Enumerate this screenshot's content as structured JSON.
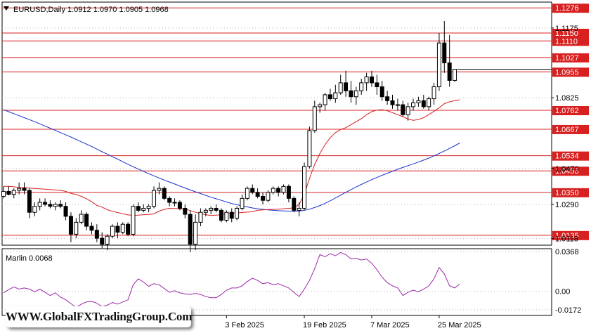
{
  "chart_data": [
    {
      "type": "candlestick",
      "symbol_header": "EURUSD,Daily  1.0912 1.0970 1.0905 1.0968",
      "ylim": [
        1.0085,
        1.1305
      ],
      "y_tick_labels": [
        "1.1175",
        "1.0825",
        "1.0470",
        "1.0290",
        "1.0118"
      ],
      "x_tick_labels": [
        "3 Feb 2025",
        "19 Feb 2025",
        "7 Mar 2025",
        "25 Mar 2025"
      ],
      "horizontal_levels": [
        {
          "value": 1.1276,
          "label": "1.1276"
        },
        {
          "value": 1.115,
          "label": "1.1150"
        },
        {
          "value": 1.111,
          "label": "1.1110"
        },
        {
          "value": 1.1027,
          "label": "1.1027"
        },
        {
          "value": 1.0955,
          "label": "1.0955"
        },
        {
          "value": 1.0762,
          "label": "1.0762"
        },
        {
          "value": 1.0667,
          "label": "1.0667"
        },
        {
          "value": 1.0534,
          "label": "1.0534"
        },
        {
          "value": 1.0458,
          "label": "1.0458"
        },
        {
          "value": 1.035,
          "label": "1.0350"
        },
        {
          "value": 1.0135,
          "label": "1.0135"
        }
      ],
      "current_price": 1.0968,
      "candles": [
        [
          1.033,
          1.038,
          1.032,
          1.0355
        ],
        [
          1.0355,
          1.038,
          1.0335,
          1.034
        ],
        [
          1.034,
          1.037,
          1.032,
          1.036
        ],
        [
          1.036,
          1.04,
          1.034,
          1.037
        ],
        [
          1.037,
          1.04,
          1.034,
          1.036
        ],
        [
          1.036,
          1.037,
          1.022,
          1.025
        ],
        [
          1.025,
          1.03,
          1.023,
          1.028
        ],
        [
          1.028,
          1.032,
          1.026,
          1.03
        ],
        [
          1.03,
          1.032,
          1.028,
          1.029
        ],
        [
          1.029,
          1.031,
          1.027,
          1.028
        ],
        [
          1.028,
          1.03,
          1.026,
          1.029
        ],
        [
          1.029,
          1.031,
          1.027,
          1.028
        ],
        [
          1.028,
          1.03,
          1.021,
          1.023
        ],
        [
          1.023,
          1.025,
          1.01,
          1.014
        ],
        [
          1.014,
          1.022,
          1.012,
          1.02
        ],
        [
          1.02,
          1.026,
          1.019,
          1.024
        ],
        [
          1.024,
          1.025,
          1.016,
          1.018
        ],
        [
          1.018,
          1.02,
          1.014,
          1.016
        ],
        [
          1.016,
          1.019,
          1.01,
          1.012
        ],
        [
          1.012,
          1.015,
          1.007,
          1.009
        ],
        [
          1.009,
          1.014,
          1.006,
          1.013
        ],
        [
          1.013,
          1.019,
          1.012,
          1.018
        ],
        [
          1.018,
          1.02,
          1.012,
          1.015
        ],
        [
          1.015,
          1.02,
          1.014,
          1.019
        ],
        [
          1.019,
          1.02,
          1.013,
          1.014
        ],
        [
          1.014,
          1.029,
          1.013,
          1.028
        ],
        [
          1.028,
          1.03,
          1.025,
          1.026
        ],
        [
          1.026,
          1.029,
          1.025,
          1.027
        ],
        [
          1.027,
          1.029,
          1.025,
          1.028
        ],
        [
          1.028,
          1.038,
          1.027,
          1.036
        ],
        [
          1.036,
          1.04,
          1.034,
          1.037
        ],
        [
          1.037,
          1.038,
          1.031,
          1.032
        ],
        [
          1.032,
          1.033,
          1.028,
          1.03
        ],
        [
          1.03,
          1.032,
          1.028,
          1.03
        ],
        [
          1.03,
          1.031,
          1.026,
          1.027
        ],
        [
          1.027,
          1.029,
          1.022,
          1.024
        ],
        [
          1.024,
          1.026,
          1.005,
          1.009
        ],
        [
          1.009,
          1.024,
          1.006,
          1.02
        ],
        [
          1.02,
          1.027,
          1.018,
          1.025
        ],
        [
          1.025,
          1.027,
          1.023,
          1.026
        ],
        [
          1.026,
          1.028,
          1.024,
          1.027
        ],
        [
          1.027,
          1.029,
          1.025,
          1.026
        ],
        [
          1.026,
          1.027,
          1.02,
          1.021
        ],
        [
          1.021,
          1.026,
          1.02,
          1.025
        ],
        [
          1.025,
          1.027,
          1.02,
          1.022
        ],
        [
          1.022,
          1.028,
          1.021,
          1.027
        ],
        [
          1.027,
          1.034,
          1.026,
          1.032
        ],
        [
          1.032,
          1.038,
          1.031,
          1.037
        ],
        [
          1.037,
          1.039,
          1.034,
          1.035
        ],
        [
          1.035,
          1.037,
          1.032,
          1.033
        ],
        [
          1.033,
          1.035,
          1.029,
          1.031
        ],
        [
          1.031,
          1.036,
          1.03,
          1.035
        ],
        [
          1.035,
          1.038,
          1.034,
          1.037
        ],
        [
          1.037,
          1.038,
          1.033,
          1.035
        ],
        [
          1.035,
          1.039,
          1.034,
          1.038
        ],
        [
          1.038,
          1.039,
          1.03,
          1.032
        ],
        [
          1.032,
          1.033,
          1.025,
          1.026
        ],
        [
          1.026,
          1.03,
          1.023,
          1.027
        ],
        [
          1.027,
          1.05,
          1.026,
          1.048
        ],
        [
          1.048,
          1.068,
          1.047,
          1.066
        ],
        [
          1.066,
          1.081,
          1.065,
          1.078
        ],
        [
          1.078,
          1.08,
          1.075,
          1.079
        ],
        [
          1.079,
          1.085,
          1.076,
          1.084
        ],
        [
          1.084,
          1.087,
          1.081,
          1.082
        ],
        [
          1.082,
          1.089,
          1.08,
          1.085
        ],
        [
          1.085,
          1.094,
          1.084,
          1.09
        ],
        [
          1.09,
          1.096,
          1.083,
          1.086
        ],
        [
          1.086,
          1.091,
          1.08,
          1.083
        ],
        [
          1.083,
          1.088,
          1.079,
          1.086
        ],
        [
          1.086,
          1.092,
          1.084,
          1.09
        ],
        [
          1.09,
          1.095,
          1.086,
          1.093
        ],
        [
          1.093,
          1.096,
          1.088,
          1.09
        ],
        [
          1.09,
          1.094,
          1.084,
          1.088
        ],
        [
          1.088,
          1.091,
          1.081,
          1.083
        ],
        [
          1.083,
          1.086,
          1.079,
          1.081
        ],
        [
          1.081,
          1.084,
          1.077,
          1.079
        ],
        [
          1.079,
          1.082,
          1.076,
          1.079
        ],
        [
          1.079,
          1.081,
          1.073,
          1.074
        ],
        [
          1.074,
          1.08,
          1.071,
          1.078
        ],
        [
          1.078,
          1.082,
          1.076,
          1.08
        ],
        [
          1.08,
          1.083,
          1.078,
          1.081
        ],
        [
          1.081,
          1.084,
          1.077,
          1.078
        ],
        [
          1.078,
          1.083,
          1.076,
          1.082
        ],
        [
          1.082,
          1.09,
          1.079,
          1.088
        ],
        [
          1.088,
          1.115,
          1.086,
          1.11
        ],
        [
          1.11,
          1.121,
          1.095,
          1.1
        ],
        [
          1.1,
          1.114,
          1.088,
          1.0912
        ],
        [
          1.0912,
          1.097,
          1.0905,
          1.0968
        ]
      ],
      "ma_red": [
        1.038,
        1.038,
        1.0378,
        1.0375,
        1.0374,
        1.0372,
        1.037,
        1.0368,
        1.0366,
        1.0364,
        1.0362,
        1.036,
        1.0355,
        1.0345,
        1.034,
        1.033,
        1.0318,
        1.0303,
        1.0285,
        1.0276,
        1.0263,
        1.0255,
        1.0249,
        1.0243,
        1.0237,
        1.0235,
        1.0236,
        1.0238,
        1.0239,
        1.0242,
        1.0256,
        1.0265,
        1.027,
        1.0269,
        1.0268,
        1.0267,
        1.0259,
        1.025,
        1.0244,
        1.0238,
        1.0234,
        1.0236,
        1.0238,
        1.0244,
        1.0247,
        1.0247,
        1.0249,
        1.0251,
        1.0253,
        1.026,
        1.0262,
        1.0264,
        1.0265,
        1.0266,
        1.0268,
        1.027,
        1.0272,
        1.029,
        1.034,
        1.042,
        1.049,
        1.0545,
        1.059,
        1.0625,
        1.065,
        1.0665,
        1.0675,
        1.069,
        1.0705,
        1.072,
        1.074,
        1.0755,
        1.0763,
        1.0765,
        1.076,
        1.075,
        1.074,
        1.073,
        1.0718,
        1.0712,
        1.0715,
        1.0725,
        1.074,
        1.0757,
        1.0775,
        1.0795,
        1.0805,
        1.081,
        1.0815
      ],
      "ma_blue": [
        1.0765,
        1.0755,
        1.0745,
        1.0735,
        1.0725,
        1.0715,
        1.0705,
        1.0694,
        1.0683,
        1.0672,
        1.0661,
        1.065,
        1.0639,
        1.0628,
        1.0616,
        1.0604,
        1.0592,
        1.058,
        1.0567,
        1.0554,
        1.0542,
        1.0529,
        1.0517,
        1.0504,
        1.0491,
        1.0479,
        1.0467,
        1.0455,
        1.0444,
        1.0433,
        1.0422,
        1.0412,
        1.0402,
        1.0392,
        1.0382,
        1.0372,
        1.0362,
        1.0353,
        1.0344,
        1.0335,
        1.0326,
        1.0318,
        1.031,
        1.0302,
        1.0294,
        1.0288,
        1.0282,
        1.0277,
        1.0272,
        1.0268,
        1.0265,
        1.0262,
        1.026,
        1.0258,
        1.0257,
        1.0256,
        1.0255,
        1.0256,
        1.026,
        1.0266,
        1.0274,
        1.0284,
        1.0295,
        1.0308,
        1.0322,
        1.0336,
        1.035,
        1.0364,
        1.0377,
        1.039,
        1.0402,
        1.0414,
        1.0425,
        1.0436,
        1.0446,
        1.0456,
        1.0466,
        1.0475,
        1.0484,
        1.0493,
        1.0502,
        1.0512,
        1.0522,
        1.0533,
        1.0545,
        1.0558,
        1.0571,
        1.0584,
        1.0598
      ]
    },
    {
      "type": "line",
      "indicator_label": "Marlin 0.0068",
      "ylim": [
        -0.0225,
        0.0395
      ],
      "y_tick_labels": [
        "0.0368",
        "0.00",
        "-0.0172"
      ],
      "values": [
        -0.0015,
        0.0015,
        0.004,
        0.002,
        0.003,
        0.002,
        -0.0005,
        0.002,
        -0.001,
        -0.004,
        -0.0015,
        -0.0055,
        -0.008,
        -0.0115,
        -0.015,
        -0.012,
        -0.01,
        -0.0095,
        -0.011,
        -0.0145,
        -0.013,
        -0.0105,
        -0.012,
        -0.01,
        -0.008,
        0.006,
        0.0115,
        0.0085,
        0.0045,
        0.007,
        0.006,
        0.0025,
        -0.001,
        0.0005,
        -0.0015,
        -0.0025,
        -0.003,
        -0.002,
        -0.003,
        -0.005,
        -0.006,
        -0.006,
        -0.003,
        0.001,
        0.003,
        0.003,
        0.005,
        0.009,
        0.012,
        0.01,
        0.007,
        0.008,
        0.006,
        0.007,
        0.005,
        0.003,
        -0.001,
        -0.005,
        0.002,
        0.01,
        0.021,
        0.034,
        0.032,
        0.035,
        0.033,
        0.036,
        0.034,
        0.03,
        0.0305,
        0.029,
        0.03,
        0.026,
        0.02,
        0.013,
        0.008,
        0.005,
        0.003,
        -0.004,
        -0.001,
        0.001,
        -0.0005,
        0.002,
        0.005,
        0.0115,
        0.022,
        0.016,
        0.005,
        0.003,
        0.0068
      ]
    }
  ],
  "watermark": "WWW.GlobalFXTradingGroup.Com",
  "colors": {
    "candle_outline": "#000000",
    "bull_fill": "#ffffff",
    "bear_fill": "#000000",
    "level_line": "#d82020",
    "level_label_bg": "#d82020",
    "ma_fast": "#d82020",
    "ma_slow": "#1a2fd0",
    "oscillator": "#9b27a8",
    "grid": "#b8b8b8"
  }
}
